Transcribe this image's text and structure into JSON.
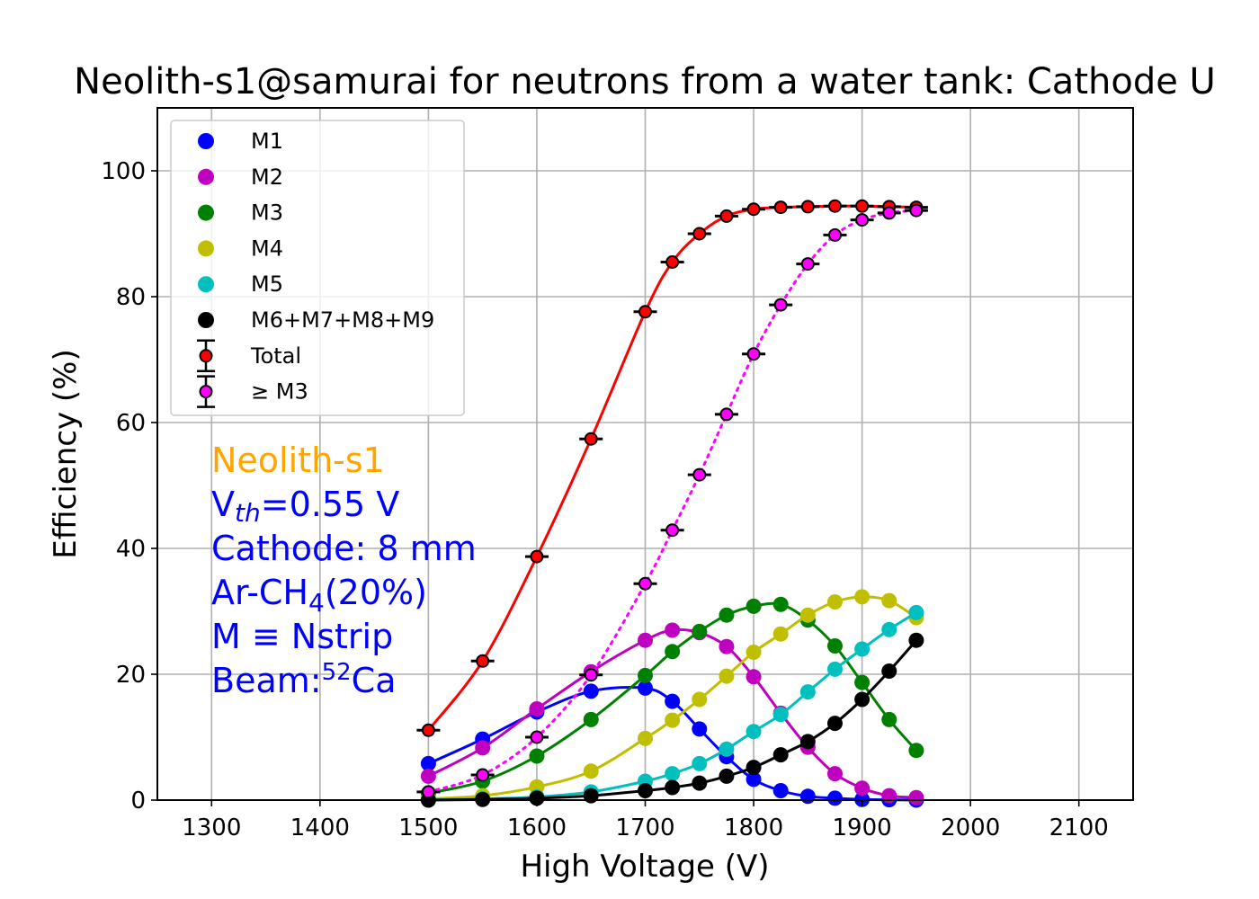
{
  "chart_data": {
    "type": "line",
    "title": "Neolith-s1@samurai for neutrons from a water tank: Cathode U",
    "xlabel": "High Voltage (V)",
    "ylabel": "Efficiency (%)",
    "xlim": [
      1250,
      2150
    ],
    "ylim": [
      0,
      110
    ],
    "xticks": [
      1300,
      1400,
      1500,
      1600,
      1700,
      1800,
      1900,
      2000,
      2100
    ],
    "yticks": [
      0,
      20,
      40,
      60,
      80,
      100
    ],
    "grid": true,
    "legend_position": "top-left",
    "x": [
      1500,
      1550,
      1600,
      1650,
      1700,
      1725,
      1750,
      1775,
      1800,
      1825,
      1850,
      1875,
      1900,
      1925,
      1950
    ],
    "series": [
      {
        "name": "M1",
        "color": "#0000ff",
        "style": "solid",
        "values": [
          5.8,
          9.7,
          14.0,
          17.3,
          17.8,
          15.7,
          11.3,
          6.9,
          3.3,
          1.5,
          0.6,
          0.3,
          0.1,
          0.05,
          0.0
        ]
      },
      {
        "name": "M2",
        "color": "#bf00bf",
        "style": "solid",
        "values": [
          3.8,
          8.3,
          14.5,
          20.4,
          25.4,
          27.0,
          26.6,
          24.4,
          19.6,
          13.8,
          8.4,
          4.2,
          1.9,
          0.7,
          0.4
        ]
      },
      {
        "name": "M3",
        "color": "#008000",
        "style": "solid",
        "values": [
          1.1,
          3.0,
          7.0,
          12.8,
          19.8,
          23.6,
          26.8,
          29.4,
          30.8,
          31.1,
          28.6,
          24.5,
          18.7,
          12.8,
          7.9
        ]
      },
      {
        "name": "M4",
        "color": "#bfbf00",
        "style": "solid",
        "values": [
          0.2,
          0.7,
          2.1,
          4.6,
          9.8,
          12.7,
          16.0,
          19.7,
          23.5,
          26.4,
          29.4,
          31.5,
          32.3,
          31.7,
          29.0
        ]
      },
      {
        "name": "M5",
        "color": "#00bfbf",
        "style": "solid",
        "values": [
          0.05,
          0.2,
          0.5,
          1.3,
          3.0,
          4.2,
          5.8,
          8.1,
          10.9,
          13.6,
          17.2,
          20.8,
          24.0,
          27.1,
          29.8
        ]
      },
      {
        "name": "M6+M7+M8+M9",
        "color": "#000000",
        "style": "solid",
        "values": [
          0.0,
          0.1,
          0.3,
          0.7,
          1.5,
          2.0,
          2.7,
          3.8,
          5.2,
          7.2,
          9.3,
          12.2,
          16.0,
          20.5,
          25.4
        ]
      },
      {
        "name": "Total",
        "color": "#ff0000",
        "style": "solid",
        "errorbars": true,
        "values": [
          11.1,
          22.1,
          38.7,
          57.4,
          77.6,
          85.5,
          90.0,
          92.8,
          93.9,
          94.2,
          94.3,
          94.4,
          94.4,
          94.3,
          94.2
        ]
      },
      {
        "name": " ≥ M3",
        "color": "#ff00ff",
        "style": "dotted",
        "errorbars": true,
        "values": [
          1.3,
          4.0,
          10.0,
          19.9,
          34.4,
          42.9,
          51.7,
          61.3,
          70.9,
          78.7,
          85.2,
          89.8,
          92.2,
          93.3,
          93.7
        ]
      }
    ],
    "annotations": [
      {
        "text": "Neolith-s1",
        "color": "#ffa500"
      },
      {
        "text": "V_th=0.55 V",
        "color": "#0000ff"
      },
      {
        "text": "Cathode: 8 mm",
        "color": "#0000ff"
      },
      {
        "text": "Ar-CH_4(20%)",
        "color": "#0000ff"
      },
      {
        "text": "M ≡ Nstrip",
        "color": "#0000ff"
      },
      {
        "text": "Beam:^52Ca",
        "color": "#0000ff"
      }
    ]
  }
}
